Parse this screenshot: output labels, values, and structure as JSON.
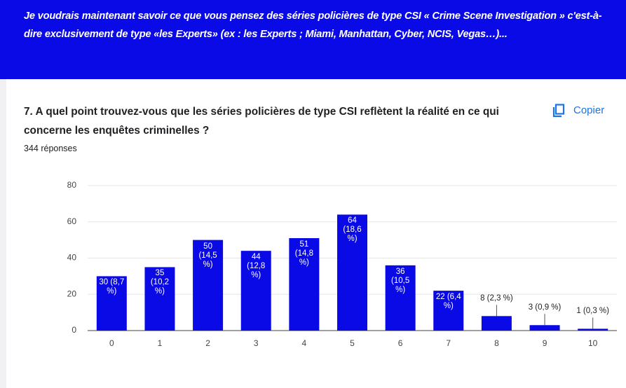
{
  "header": {
    "text": "Je voudrais maintenant savoir ce que vous pensez des séries policières de type CSI  « Crime Scene Investigation » c'est-à-dire exclusivement de type «les Experts»  (ex : les Experts ; Miami, Manhattan, Cyber, NCIS, Vegas…)..."
  },
  "question": {
    "title": "7. A quel point trouvez-vous que les séries policières de type CSI reflètent la réalité en ce qui concerne les enquêtes criminelles ?",
    "copy": "Copier",
    "responses": "344 réponses"
  },
  "chart_data": {
    "type": "bar",
    "categories": [
      "0",
      "1",
      "2",
      "3",
      "4",
      "5",
      "6",
      "7",
      "8",
      "9",
      "10"
    ],
    "values": [
      30,
      35,
      50,
      44,
      51,
      64,
      36,
      22,
      8,
      3,
      1
    ],
    "value_labels": [
      "30 (8,7 %)",
      "35 (10,2 %)",
      "50 (14,5 %)",
      "44 (12,8 %)",
      "51 (14,8 %)",
      "64 (18,6 %)",
      "36 (10,5 %)",
      "22 (6,4 %)",
      "8 (2,3 %)",
      "3 (0,9 %)",
      "1 (0,3 %)"
    ],
    "color": "#0a0ae6",
    "ylim": [
      0,
      80
    ],
    "yticks": [
      0,
      20,
      40,
      60,
      80
    ],
    "grid": true
  }
}
